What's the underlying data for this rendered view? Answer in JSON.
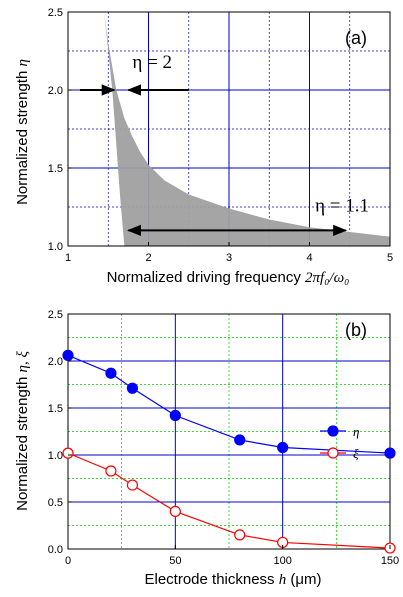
{
  "chart_data": [
    {
      "type": "area",
      "panel_label": "(a)",
      "xlabel": "Normalized driving frequency ",
      "xlabel_math": "2πf₀/ω₀",
      "ylabel": "Normalized strength ",
      "ylabel_math": "η",
      "xlim": [
        1,
        5
      ],
      "ylim": [
        1.0,
        2.5
      ],
      "xticks": [
        "1",
        "2",
        "3",
        "4",
        "5"
      ],
      "yticks": [
        "1.0",
        "1.5",
        "2.0",
        "2.5"
      ],
      "grid": "on",
      "region": {
        "lower_edge": 1.0,
        "upper_edge_x": [
          1.45,
          1.5,
          1.55,
          1.6,
          1.7,
          1.8,
          1.9,
          2.0,
          2.2,
          2.5,
          3.0,
          3.5,
          4.0,
          4.5,
          5.0
        ],
        "upper_edge_y": [
          2.5,
          2.3,
          2.15,
          2.0,
          1.82,
          1.7,
          1.6,
          1.52,
          1.42,
          1.33,
          1.24,
          1.17,
          1.12,
          1.09,
          1.06
        ],
        "left_edge_x": [
          1.45,
          1.55,
          1.65,
          1.7
        ],
        "left_edge_y": [
          2.5,
          2.0,
          1.3,
          1.0
        ],
        "color": "#a0a0a0"
      },
      "annotations": [
        {
          "text": "η = 2",
          "arrow_from": 1.0,
          "arrow_to": 1.6,
          "arrow_y": 2.0,
          "arrow2_from": 2.5,
          "arrow2_to": 1.75
        },
        {
          "text": "η = 1.1",
          "arrow_from": 1.7,
          "arrow_to": 4.5,
          "arrow_y": 1.1
        }
      ]
    },
    {
      "type": "line",
      "panel_label": "(b)",
      "xlabel": "Electrode thickness ",
      "xlabel_math": "h",
      "xlabel_unit": " (μm)",
      "ylabel": "Normalized strength ",
      "ylabel_math": "η, ξ",
      "xlim": [
        0,
        150
      ],
      "ylim": [
        0.0,
        2.5
      ],
      "xticks": [
        "0",
        "50",
        "100",
        "150"
      ],
      "yticks": [
        "0.0",
        "0.5",
        "1.0",
        "1.5",
        "2.0",
        "2.5"
      ],
      "grid": "on",
      "legend_position": "right",
      "series": [
        {
          "name": "η",
          "color": "#0000ff",
          "marker": "filled-circle",
          "x": [
            0,
            20,
            30,
            50,
            80,
            100,
            150
          ],
          "y": [
            2.06,
            1.87,
            1.71,
            1.42,
            1.16,
            1.08,
            1.02
          ]
        },
        {
          "name": "ξ",
          "color": "#ff0000",
          "marker": "open-circle",
          "x": [
            0,
            20,
            30,
            50,
            80,
            100,
            150
          ],
          "y": [
            1.02,
            0.83,
            0.68,
            0.4,
            0.15,
            0.07,
            0.01
          ]
        }
      ]
    }
  ]
}
